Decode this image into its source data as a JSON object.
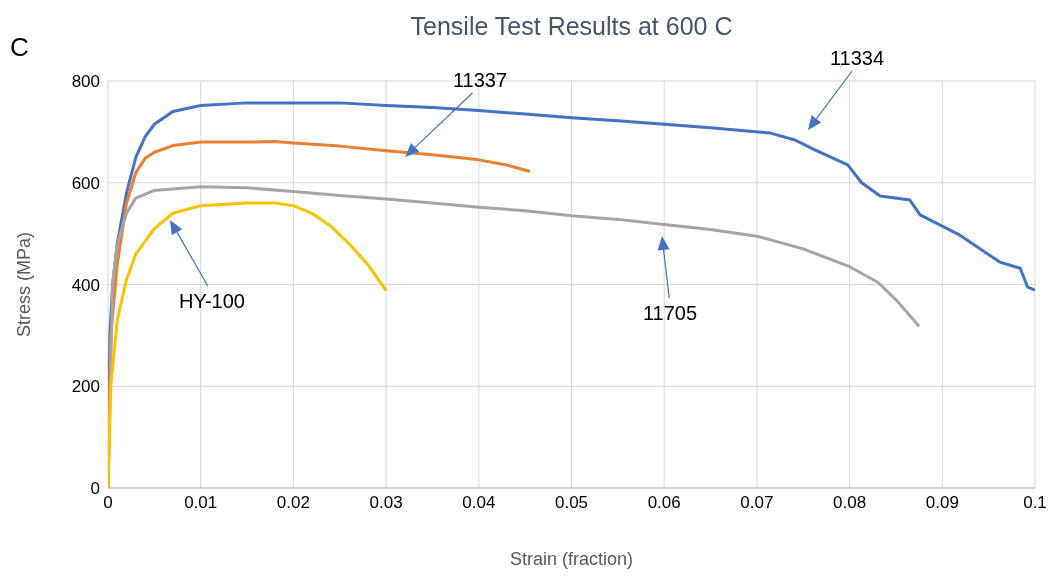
{
  "chart_data": {
    "type": "line",
    "title": "Tensile Test Results at 600 C",
    "xlabel": "Strain (fraction)",
    "ylabel": "Stress (MPa)",
    "xlim": [
      0,
      0.1
    ],
    "xticks": [
      0,
      0.01,
      0.02,
      0.03,
      0.04,
      0.05,
      0.06,
      0.07,
      0.08,
      0.09,
      0.1
    ],
    "ylim": [
      0,
      800
    ],
    "yticks": [
      0,
      200,
      400,
      600,
      800
    ],
    "grid": true,
    "legend": false,
    "marker": "none",
    "line_style": "solid",
    "annotations": [
      "C",
      "11334",
      "11337",
      "HY-100",
      "11705"
    ],
    "series": [
      {
        "color": "#4472c4",
        "x": [
          0,
          0.0002,
          0.0005,
          0.001,
          0.002,
          0.003,
          0.004,
          0.005,
          0.007,
          0.01,
          0.015,
          0.02,
          0.025,
          0.03,
          0.035,
          0.04,
          0.045,
          0.05,
          0.055,
          0.06,
          0.065,
          0.0714,
          0.0741,
          0.0763,
          0.0798,
          0.0813,
          0.0833,
          0.0865,
          0.0876,
          0.0919,
          0.0962,
          0.0984,
          0.0992,
          0.1
        ],
        "values": [
          0,
          300,
          400,
          480,
          580,
          650,
          690,
          715,
          740,
          752,
          757,
          757,
          757,
          752,
          748,
          742,
          735,
          728,
          722,
          715,
          708,
          698,
          684,
          664,
          635,
          600,
          574,
          566,
          537,
          497,
          444,
          432,
          395,
          389
        ]
      },
      {
        "color": "#ed7d31",
        "x": [
          0,
          0.0003,
          0.001,
          0.002,
          0.003,
          0.004,
          0.005,
          0.007,
          0.01,
          0.015,
          0.018,
          0.02,
          0.025,
          0.03,
          0.035,
          0.04,
          0.043,
          0.0455
        ],
        "values": [
          0,
          300,
          440,
          560,
          620,
          648,
          660,
          673,
          680,
          680,
          681,
          678,
          672,
          663,
          655,
          645,
          635,
          622
        ]
      },
      {
        "color": "#a5a5a5",
        "x": [
          0,
          0.0005,
          0.001,
          0.002,
          0.003,
          0.005,
          0.01,
          0.015,
          0.02,
          0.025,
          0.03,
          0.035,
          0.04,
          0.045,
          0.05,
          0.055,
          0.06,
          0.065,
          0.07,
          0.075,
          0.08,
          0.083,
          0.085,
          0.0875
        ],
        "values": [
          0,
          400,
          480,
          540,
          570,
          585,
          592,
          590,
          583,
          575,
          568,
          560,
          552,
          545,
          535,
          528,
          518,
          508,
          495,
          470,
          435,
          405,
          370,
          318
        ]
      },
      {
        "color": "#ffc000",
        "x": [
          0,
          0.0003,
          0.001,
          0.002,
          0.003,
          0.005,
          0.007,
          0.01,
          0.015,
          0.018,
          0.02,
          0.022,
          0.024,
          0.026,
          0.028,
          0.03
        ],
        "values": [
          0,
          200,
          330,
          410,
          460,
          510,
          540,
          555,
          560,
          560,
          555,
          540,
          515,
          480,
          440,
          388
        ]
      }
    ]
  }
}
